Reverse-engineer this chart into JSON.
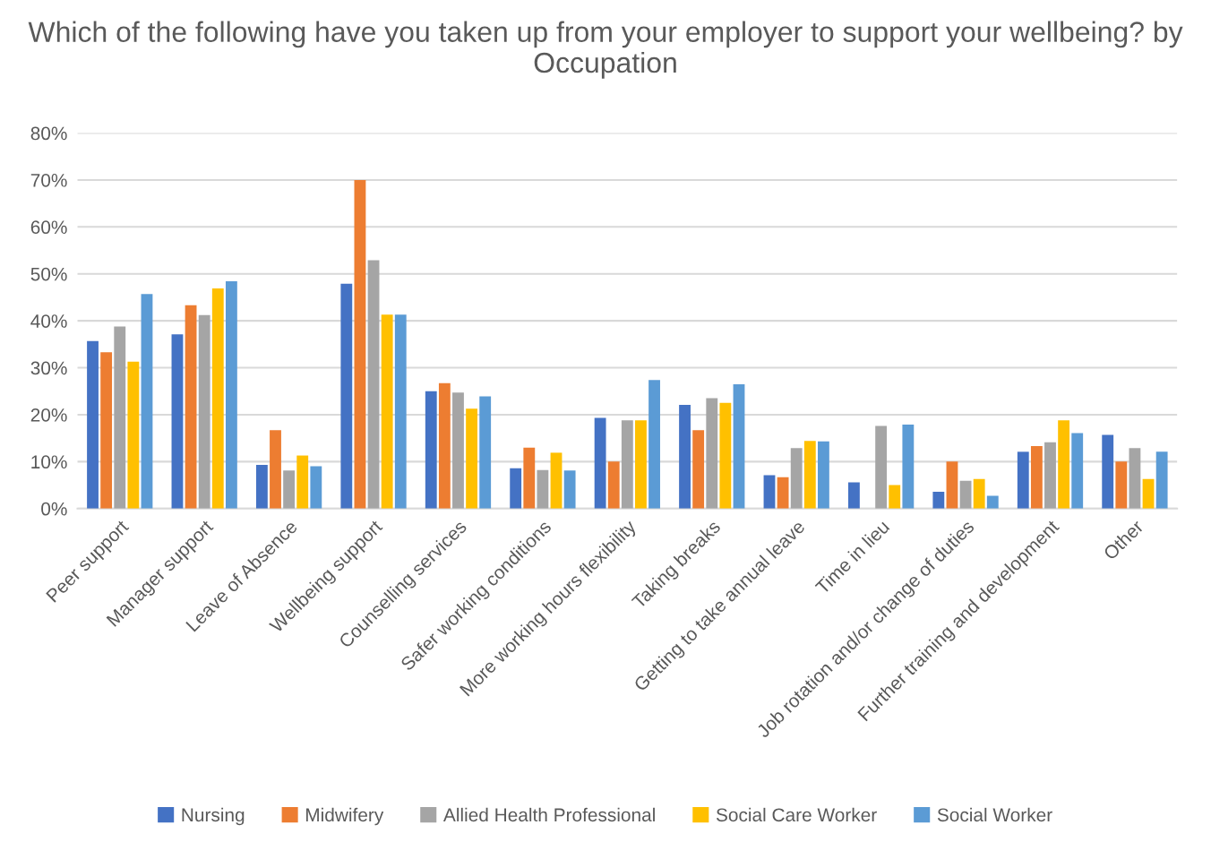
{
  "chart_data": {
    "type": "bar",
    "title": "Which of the following have you taken up from your employer to support your wellbeing? by Occupation",
    "categories": [
      "Peer support",
      "Manager support",
      "Leave of Absence",
      "Wellbeing support",
      "Counselling services",
      "Safer working conditions",
      "More working hours flexibility",
      "Taking breaks",
      "Getting to take annual leave",
      "Time in lieu",
      "Job rotation and/or change of duties",
      "Further training and development",
      "Other"
    ],
    "series": [
      {
        "name": "Nursing",
        "color": "#4472c4",
        "values": [
          0.357,
          0.371,
          0.093,
          0.479,
          0.25,
          0.086,
          0.193,
          0.221,
          0.071,
          0.056,
          0.036,
          0.121,
          0.157
        ]
      },
      {
        "name": "Midwifery",
        "color": "#ed7d31",
        "values": [
          0.333,
          0.433,
          0.167,
          0.7,
          0.267,
          0.13,
          0.1,
          0.167,
          0.067,
          0.0,
          0.1,
          0.133,
          0.1
        ]
      },
      {
        "name": "Allied Health Professional",
        "color": "#a5a5a5",
        "values": [
          0.388,
          0.412,
          0.081,
          0.529,
          0.247,
          0.082,
          0.188,
          0.235,
          0.129,
          0.176,
          0.059,
          0.141,
          0.129
        ]
      },
      {
        "name": "Social Care Worker",
        "color": "#ffc000",
        "values": [
          0.313,
          0.469,
          0.113,
          0.413,
          0.213,
          0.119,
          0.188,
          0.225,
          0.144,
          0.05,
          0.063,
          0.188,
          0.063
        ]
      },
      {
        "name": "Social Worker",
        "color": "#5b9bd5",
        "values": [
          0.457,
          0.484,
          0.09,
          0.413,
          0.239,
          0.081,
          0.274,
          0.265,
          0.143,
          0.179,
          0.027,
          0.161,
          0.121
        ]
      }
    ],
    "ylim": [
      0,
      0.8
    ],
    "yticks": [
      {
        "value": 0,
        "label": "0%"
      },
      {
        "value": 0.1,
        "label": "10%"
      },
      {
        "value": 0.2,
        "label": "20%"
      },
      {
        "value": 0.3,
        "label": "30%"
      },
      {
        "value": 0.4,
        "label": "40%"
      },
      {
        "value": 0.5,
        "label": "50%"
      },
      {
        "value": 0.6,
        "label": "60%"
      },
      {
        "value": 0.7,
        "label": "70%"
      },
      {
        "value": 0.8,
        "label": "80%"
      }
    ],
    "grid": "y",
    "legend": "bottom"
  }
}
